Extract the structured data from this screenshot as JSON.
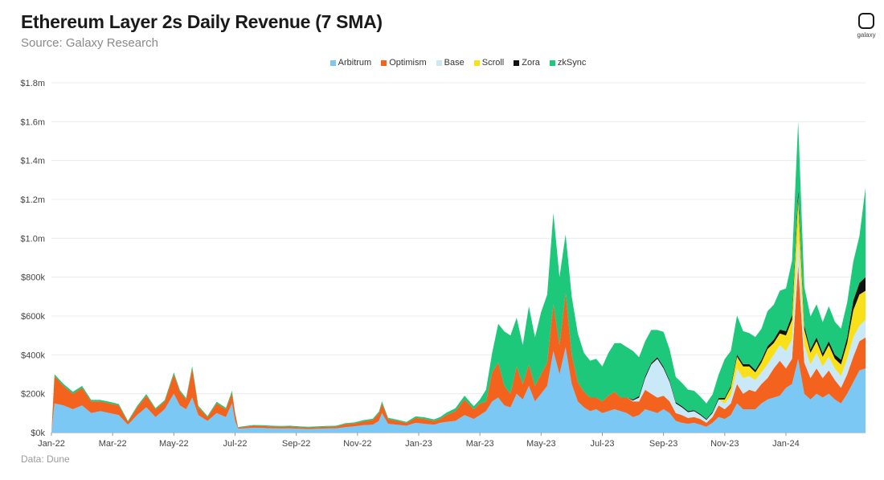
{
  "header": {
    "title": "Ethereum Layer 2s Daily Revenue (7 SMA)",
    "subtitle": "Source: Galaxy Research",
    "logo_text": "galaxy"
  },
  "footer": {
    "text": "Data: Dune"
  },
  "chart_data": {
    "type": "area",
    "stacked": true,
    "title": "Ethereum Layer 2s Daily Revenue (7 SMA)",
    "xlabel": "",
    "ylabel": "",
    "ylim": [
      0,
      1800000
    ],
    "yticks": [
      0,
      200000,
      400000,
      600000,
      800000,
      1000000,
      1200000,
      1400000,
      1600000,
      1800000
    ],
    "ytick_labels": [
      "$0k",
      "$200k",
      "$400k",
      "$600k",
      "$800k",
      "$1.0m",
      "$1.2m",
      "$1.4m",
      "$1.6m",
      "$1.8m"
    ],
    "x_tick_labels": [
      "Jan-22",
      "Mar-22",
      "May-22",
      "Jul-22",
      "Sep-22",
      "Nov-22",
      "Jan-23",
      "Mar-23",
      "May-23",
      "Jul-23",
      "Sep-23",
      "Nov-23",
      "Jan-24"
    ],
    "x_tick_positions_months": [
      0,
      2,
      4,
      6,
      8,
      10,
      12,
      14,
      16,
      18,
      20,
      22,
      24
    ],
    "x_range_months": [
      0,
      26.6
    ],
    "grid": true,
    "legend_position": "top-center",
    "x_months": [
      0,
      0.1,
      0.4,
      0.7,
      1.0,
      1.3,
      1.6,
      1.9,
      2.2,
      2.5,
      2.8,
      3.1,
      3.4,
      3.7,
      4.0,
      4.2,
      4.4,
      4.6,
      4.8,
      5.1,
      5.4,
      5.7,
      5.9,
      6.0,
      6.1,
      6.3,
      6.6,
      6.9,
      7.2,
      7.5,
      7.8,
      8.1,
      8.4,
      8.7,
      9.0,
      9.3,
      9.6,
      9.9,
      10.2,
      10.5,
      10.7,
      10.8,
      11.0,
      11.3,
      11.6,
      11.9,
      12.2,
      12.5,
      12.7,
      12.9,
      13.2,
      13.5,
      13.8,
      14.0,
      14.2,
      14.4,
      14.6,
      14.8,
      15.0,
      15.2,
      15.4,
      15.6,
      15.8,
      16.0,
      16.2,
      16.4,
      16.6,
      16.8,
      17.0,
      17.2,
      17.4,
      17.6,
      17.8,
      18.0,
      18.2,
      18.4,
      18.6,
      18.8,
      19.0,
      19.2,
      19.4,
      19.6,
      19.8,
      20.0,
      20.2,
      20.4,
      20.6,
      20.8,
      21.0,
      21.2,
      21.4,
      21.6,
      21.8,
      22.0,
      22.2,
      22.4,
      22.6,
      22.8,
      23.0,
      23.2,
      23.4,
      23.6,
      23.8,
      24.0,
      24.2,
      24.4,
      24.6,
      24.8,
      25.0,
      25.2,
      25.4,
      25.6,
      25.8,
      26.0,
      26.2,
      26.4,
      26.6
    ],
    "series": [
      {
        "name": "Arbitrum",
        "color": "#7cc8f4",
        "values": [
          0,
          150000,
          140000,
          120000,
          140000,
          100000,
          110000,
          100000,
          90000,
          40000,
          90000,
          130000,
          80000,
          120000,
          200000,
          140000,
          120000,
          180000,
          90000,
          60000,
          100000,
          80000,
          150000,
          60000,
          20000,
          22000,
          25000,
          24000,
          22000,
          21000,
          22000,
          20000,
          18000,
          20000,
          21000,
          22000,
          28000,
          32000,
          38000,
          40000,
          60000,
          100000,
          45000,
          40000,
          35000,
          50000,
          45000,
          40000,
          50000,
          55000,
          60000,
          90000,
          70000,
          90000,
          110000,
          160000,
          180000,
          140000,
          130000,
          200000,
          170000,
          240000,
          160000,
          200000,
          240000,
          420000,
          300000,
          440000,
          250000,
          160000,
          130000,
          110000,
          120000,
          100000,
          110000,
          120000,
          110000,
          100000,
          80000,
          90000,
          120000,
          110000,
          100000,
          120000,
          100000,
          60000,
          50000,
          45000,
          50000,
          40000,
          30000,
          50000,
          80000,
          70000,
          90000,
          150000,
          120000,
          120000,
          120000,
          150000,
          170000,
          180000,
          190000,
          230000,
          250000,
          380000,
          200000,
          170000,
          200000,
          180000,
          200000,
          170000,
          150000,
          200000,
          260000,
          320000,
          330000
        ]
      },
      {
        "name": "Optimism",
        "color": "#f4631e",
        "values": [
          0,
          140000,
          100000,
          80000,
          90000,
          60000,
          50000,
          50000,
          50000,
          15000,
          40000,
          60000,
          40000,
          40000,
          100000,
          70000,
          50000,
          150000,
          40000,
          20000,
          50000,
          40000,
          55000,
          40000,
          5000,
          8000,
          10000,
          10000,
          9000,
          9000,
          9000,
          8000,
          8000,
          8000,
          9000,
          9000,
          15000,
          15000,
          20000,
          25000,
          40000,
          50000,
          25000,
          20000,
          15000,
          25000,
          25000,
          20000,
          20000,
          35000,
          50000,
          80000,
          50000,
          60000,
          50000,
          150000,
          180000,
          100000,
          70000,
          140000,
          80000,
          110000,
          80000,
          100000,
          120000,
          240000,
          150000,
          280000,
          150000,
          100000,
          80000,
          70000,
          60000,
          60000,
          80000,
          90000,
          70000,
          80000,
          80000,
          70000,
          100000,
          90000,
          80000,
          70000,
          60000,
          40000,
          40000,
          30000,
          30000,
          30000,
          20000,
          30000,
          60000,
          50000,
          60000,
          100000,
          80000,
          100000,
          90000,
          100000,
          110000,
          150000,
          180000,
          100000,
          130000,
          480000,
          160000,
          110000,
          130000,
          100000,
          120000,
          100000,
          80000,
          100000,
          130000,
          150000,
          160000
        ]
      },
      {
        "name": "Base",
        "color": "#c9e9f8",
        "values": [
          0,
          0,
          0,
          0,
          0,
          0,
          0,
          0,
          0,
          0,
          0,
          0,
          0,
          0,
          0,
          0,
          0,
          0,
          0,
          0,
          0,
          0,
          0,
          0,
          0,
          0,
          0,
          0,
          0,
          0,
          0,
          0,
          0,
          0,
          0,
          0,
          0,
          0,
          0,
          0,
          0,
          0,
          0,
          0,
          0,
          0,
          0,
          0,
          0,
          0,
          0,
          0,
          0,
          0,
          0,
          0,
          0,
          0,
          0,
          0,
          0,
          0,
          0,
          0,
          0,
          0,
          0,
          0,
          0,
          0,
          0,
          0,
          0,
          0,
          0,
          0,
          0,
          0,
          5000,
          20000,
          60000,
          150000,
          200000,
          140000,
          100000,
          50000,
          40000,
          30000,
          30000,
          20000,
          15000,
          20000,
          30000,
          30000,
          40000,
          80000,
          80000,
          70000,
          60000,
          60000,
          70000,
          70000,
          80000,
          90000,
          100000,
          150000,
          90000,
          70000,
          80000,
          60000,
          70000,
          60000,
          60000,
          80000,
          100000,
          80000,
          90000
        ]
      },
      {
        "name": "Scroll",
        "color": "#f8e11a",
        "values": [
          0,
          0,
          0,
          0,
          0,
          0,
          0,
          0,
          0,
          0,
          0,
          0,
          0,
          0,
          0,
          0,
          0,
          0,
          0,
          0,
          0,
          0,
          0,
          0,
          0,
          0,
          0,
          0,
          0,
          0,
          0,
          0,
          0,
          0,
          0,
          0,
          0,
          0,
          0,
          0,
          0,
          0,
          0,
          0,
          0,
          0,
          0,
          0,
          0,
          0,
          0,
          0,
          0,
          0,
          0,
          0,
          0,
          0,
          0,
          0,
          0,
          0,
          0,
          0,
          0,
          0,
          0,
          0,
          0,
          0,
          0,
          0,
          0,
          0,
          0,
          0,
          0,
          0,
          0,
          0,
          0,
          0,
          0,
          0,
          0,
          0,
          0,
          0,
          0,
          0,
          0,
          0,
          0,
          20000,
          40000,
          60000,
          60000,
          50000,
          40000,
          50000,
          80000,
          60000,
          60000,
          80000,
          100000,
          200000,
          80000,
          60000,
          60000,
          50000,
          60000,
          50000,
          60000,
          80000,
          140000,
          160000,
          150000
        ]
      },
      {
        "name": "Zora",
        "color": "#111111",
        "values": [
          0,
          0,
          0,
          0,
          0,
          0,
          0,
          0,
          0,
          0,
          0,
          0,
          0,
          0,
          0,
          0,
          0,
          0,
          0,
          0,
          0,
          0,
          0,
          0,
          0,
          0,
          0,
          0,
          0,
          0,
          0,
          0,
          0,
          0,
          0,
          0,
          0,
          0,
          0,
          0,
          0,
          0,
          0,
          0,
          0,
          0,
          0,
          0,
          0,
          0,
          0,
          0,
          0,
          0,
          0,
          0,
          0,
          0,
          0,
          0,
          0,
          0,
          0,
          0,
          0,
          0,
          0,
          0,
          0,
          0,
          0,
          0,
          0,
          0,
          0,
          0,
          0,
          0,
          5000,
          8000,
          10000,
          8000,
          8000,
          8000,
          7000,
          6000,
          6000,
          6000,
          5000,
          5000,
          5000,
          6000,
          8000,
          8000,
          10000,
          12000,
          12000,
          12000,
          12000,
          14000,
          15000,
          18000,
          20000,
          22000,
          25000,
          40000,
          20000,
          18000,
          20000,
          18000,
          20000,
          20000,
          25000,
          30000,
          50000,
          60000,
          70000
        ]
      },
      {
        "name": "zkSync",
        "color": "#1dc87b",
        "values": [
          0,
          10000,
          10000,
          10000,
          10000,
          8000,
          8000,
          8000,
          7000,
          5000,
          7000,
          8000,
          6000,
          7000,
          10000,
          8000,
          8000,
          12000,
          8000,
          5000,
          8000,
          7000,
          10000,
          5000,
          3000,
          3000,
          4000,
          4000,
          4000,
          4000,
          4000,
          4000,
          4000,
          4000,
          4000,
          4000,
          5000,
          5000,
          6000,
          6000,
          8000,
          10000,
          6000,
          6000,
          5000,
          8000,
          8000,
          8000,
          10000,
          12000,
          15000,
          20000,
          15000,
          20000,
          60000,
          100000,
          200000,
          280000,
          300000,
          250000,
          200000,
          300000,
          250000,
          320000,
          350000,
          470000,
          350000,
          300000,
          300000,
          250000,
          200000,
          190000,
          200000,
          180000,
          220000,
          250000,
          280000,
          260000,
          250000,
          200000,
          180000,
          170000,
          140000,
          180000,
          160000,
          130000,
          120000,
          110000,
          100000,
          90000,
          80000,
          90000,
          120000,
          200000,
          180000,
          200000,
          170000,
          160000,
          170000,
          160000,
          180000,
          180000,
          200000,
          220000,
          280000,
          350000,
          200000,
          170000,
          170000,
          160000,
          180000,
          170000,
          160000,
          180000,
          200000,
          240000,
          460000
        ]
      }
    ]
  }
}
